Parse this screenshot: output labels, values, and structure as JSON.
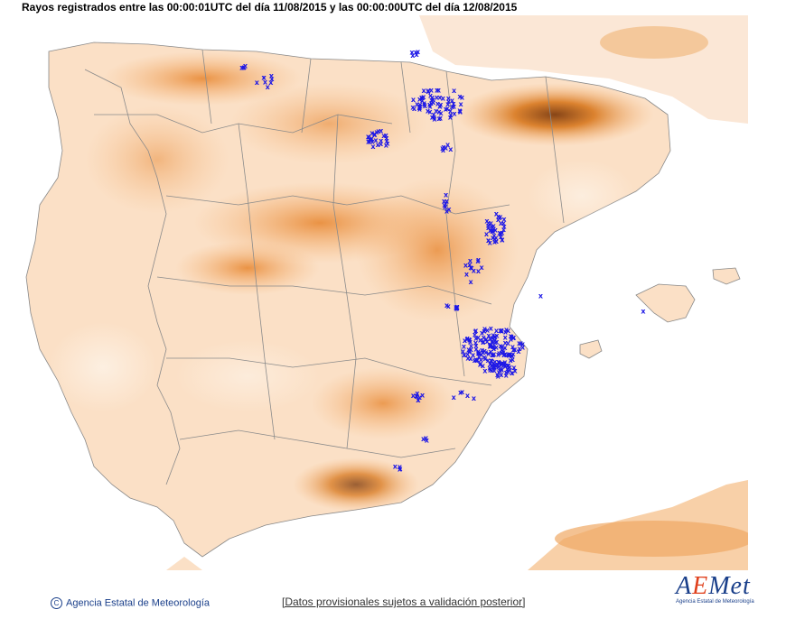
{
  "header": {
    "title": "Rayos registrados entre las 00:00:01UTC del día 11/08/2015 y las 00:00:00UTC del día 12/08/2015"
  },
  "footer": {
    "copyright_symbol": "C",
    "agency": "Agencia Estatal de Meteorología",
    "disclaimer": "[Datos provisionales sujetos a validación posterior]"
  },
  "logo": {
    "word_a": "A",
    "word_e": "E",
    "word_rest": "Met",
    "subtitle": "Agencia Estatal de Meteorología"
  },
  "colors": {
    "sea": "#ffffff",
    "land_low": "#fbe3cc",
    "land_mid": "#f6b67a",
    "land_high": "#e88a36",
    "land_peak": "#8a3e08",
    "borders": "#8a8a8a",
    "lightning": "#1e18e6",
    "africa": "#f8d4b0"
  },
  "map": {
    "marker_symbol": "x"
  }
}
